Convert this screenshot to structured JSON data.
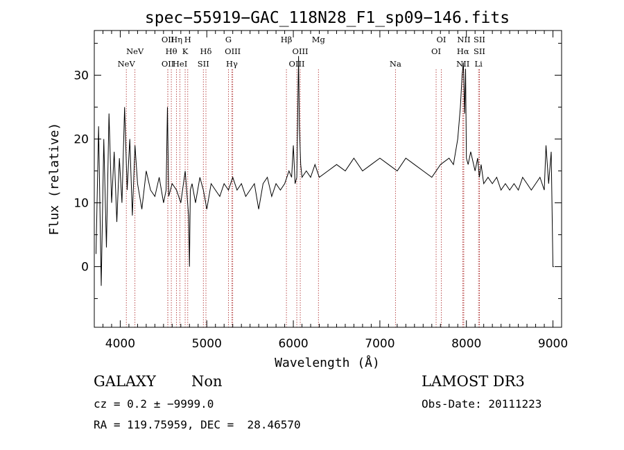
{
  "chart_data": {
    "type": "line",
    "title": "spec−55919−GAC_118N28_F1_sp09−146.fits",
    "xlabel": "Wavelength (Å)",
    "ylabel": "Flux (relative)",
    "xlim": [
      3700,
      9100
    ],
    "ylim": [
      -9.5,
      37
    ],
    "xticks": [
      4000,
      5000,
      6000,
      7000,
      8000,
      9000
    ],
    "yticks": [
      0,
      10,
      20,
      30
    ],
    "grid": false,
    "line_color": "#000000",
    "marker_color": "#aa2222",
    "series": [
      {
        "x": [
          3720,
          3750,
          3780,
          3810,
          3840,
          3870,
          3900,
          3930,
          3960,
          3990,
          4020,
          4050,
          4080,
          4110,
          4140,
          4170,
          4200,
          4250,
          4300,
          4350,
          4400,
          4450,
          4500,
          4530,
          4545,
          4560,
          4600,
          4650,
          4700,
          4750,
          4790,
          4800,
          4810,
          4830,
          4870,
          4920,
          4960,
          5000,
          5050,
          5100,
          5150,
          5200,
          5250,
          5300,
          5350,
          5400,
          5450,
          5500,
          5550,
          5600,
          5650,
          5700,
          5750,
          5800,
          5850,
          5900,
          5950,
          5980,
          6000,
          6020,
          6040,
          6060,
          6070,
          6085,
          6100,
          6150,
          6200,
          6250,
          6300,
          6400,
          6500,
          6600,
          6700,
          6800,
          6900,
          7000,
          7100,
          7200,
          7300,
          7400,
          7500,
          7600,
          7700,
          7800,
          7850,
          7900,
          7930,
          7950,
          7965,
          7980,
          7990,
          8000,
          8020,
          8050,
          8100,
          8130,
          8150,
          8170,
          8200,
          8250,
          8300,
          8350,
          8400,
          8450,
          8500,
          8550,
          8600,
          8650,
          8700,
          8750,
          8800,
          8850,
          8900,
          8920,
          8950,
          8980,
          9000,
          9010
        ],
        "y": [
          2,
          22,
          -3,
          20,
          3,
          24,
          10,
          18,
          7,
          17,
          10,
          25,
          12,
          20,
          8,
          19,
          13,
          9,
          15,
          12,
          11,
          14,
          10,
          12,
          25,
          11,
          13,
          12,
          10,
          15,
          8,
          0,
          12,
          13,
          10,
          14,
          12,
          9,
          13,
          12,
          11,
          13,
          12,
          14,
          12,
          13,
          11,
          12,
          13,
          9,
          13,
          14,
          11,
          13,
          12,
          13,
          15,
          14,
          19,
          13,
          14,
          33,
          22,
          16,
          14,
          15,
          14,
          16,
          14,
          15,
          16,
          15,
          17,
          15,
          16,
          17,
          16,
          15,
          17,
          16,
          15,
          14,
          16,
          17,
          16,
          20,
          25,
          30,
          32,
          24,
          31,
          17,
          16,
          18,
          15,
          17,
          14,
          16,
          13,
          14,
          13,
          14,
          12,
          13,
          12,
          13,
          12,
          14,
          13,
          12,
          13,
          14,
          12,
          19,
          13,
          18,
          0,
          0
        ]
      }
    ],
    "line_markers": [
      {
        "label": "NeV",
        "x": 4070,
        "row": 3
      },
      {
        "label": "NeV",
        "x": 4170,
        "row": 2
      },
      {
        "label": "OII",
        "x": 4550,
        "row": 1
      },
      {
        "label": "OII",
        "x": 4550,
        "row": 3
      },
      {
        "label": "Hη",
        "x": 4650,
        "row": 1
      },
      {
        "label": "Hθ",
        "x": 4590,
        "row": 2
      },
      {
        "label": "HeI",
        "x": 4690,
        "row": 3
      },
      {
        "label": "H",
        "x": 4780,
        "row": 1
      },
      {
        "label": "K",
        "x": 4750,
        "row": 2
      },
      {
        "label": "Hδ",
        "x": 4990,
        "row": 2
      },
      {
        "label": "SII",
        "x": 4960,
        "row": 3
      },
      {
        "label": "G",
        "x": 5250,
        "row": 1
      },
      {
        "label": "OIII",
        "x": 5300,
        "row": 2
      },
      {
        "label": "Hγ",
        "x": 5290,
        "row": 3
      },
      {
        "label": "Hβ",
        "x": 5920,
        "row": 1
      },
      {
        "label": "OIII",
        "x": 6080,
        "row": 2
      },
      {
        "label": "OIII",
        "x": 6040,
        "row": 3
      },
      {
        "label": "Mg",
        "x": 6290,
        "row": 1
      },
      {
        "label": "Na",
        "x": 7180,
        "row": 3
      },
      {
        "label": "OI",
        "x": 7710,
        "row": 1
      },
      {
        "label": "OI",
        "x": 7650,
        "row": 2
      },
      {
        "label": "NII",
        "x": 7970,
        "row": 1
      },
      {
        "label": "Hα",
        "x": 7960,
        "row": 2
      },
      {
        "label": "NII",
        "x": 7960,
        "row": 3
      },
      {
        "label": "SII",
        "x": 8150,
        "row": 1
      },
      {
        "label": "SII",
        "x": 8150,
        "row": 2
      },
      {
        "label": "Li",
        "x": 8140,
        "row": 3
      }
    ]
  },
  "info": {
    "object_class": "GALAXY",
    "subclass": "Non",
    "cz": "cz = 0.2 ± −9999.0",
    "radec": "RA = 119.75959, DEC =  28.46570",
    "survey": "LAMOST DR3",
    "obs_date": "Obs-Date: 20111223"
  }
}
